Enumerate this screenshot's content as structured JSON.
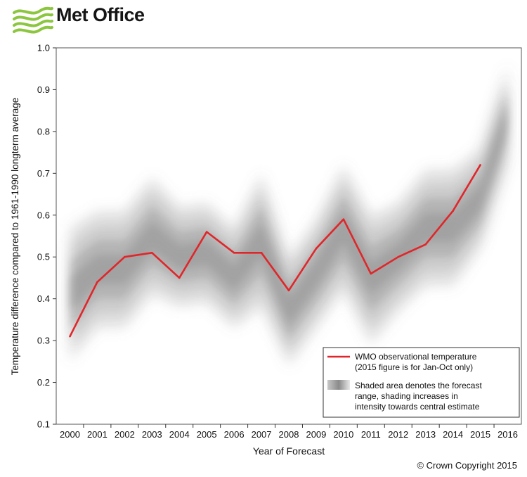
{
  "brand": {
    "name": "Met Office",
    "logo_color": "#8cc63f"
  },
  "copyright": "© Crown Copyright 2015",
  "chart_data": {
    "type": "line",
    "title": "",
    "xlabel": "Year of Forecast",
    "ylabel": "Temperature difference compared to 1961-1990 longterm average",
    "categories": [
      "2000",
      "2001",
      "2002",
      "2003",
      "2004",
      "2005",
      "2006",
      "2007",
      "2008",
      "2009",
      "2010",
      "2011",
      "2012",
      "2013",
      "2014",
      "2015",
      "2016"
    ],
    "yticks": [
      "0.1",
      "0.2",
      "0.3",
      "0.4",
      "0.5",
      "0.6",
      "0.7",
      "0.8",
      "0.9",
      "1.0"
    ],
    "ylim": [
      0.1,
      1.0
    ],
    "grid": false,
    "series": [
      {
        "name": "WMO observational temperature",
        "color": "#e0262a",
        "x": [
          "2000",
          "2001",
          "2002",
          "2003",
          "2004",
          "2005",
          "2006",
          "2007",
          "2008",
          "2009",
          "2010",
          "2011",
          "2012",
          "2013",
          "2014",
          "2015"
        ],
        "values": [
          0.31,
          0.44,
          0.5,
          0.51,
          0.45,
          0.56,
          0.51,
          0.51,
          0.42,
          0.52,
          0.59,
          0.46,
          0.5,
          0.53,
          0.61,
          0.72
        ]
      }
    ],
    "forecast_range": {
      "x": [
        "2000",
        "2001",
        "2002",
        "2003",
        "2004",
        "2005",
        "2006",
        "2007",
        "2008",
        "2009",
        "2010",
        "2011",
        "2012",
        "2013",
        "2014",
        "2015",
        "2016"
      ],
      "upper": [
        0.57,
        0.61,
        0.61,
        0.69,
        0.62,
        0.63,
        0.57,
        0.7,
        0.5,
        0.59,
        0.72,
        0.6,
        0.63,
        0.71,
        0.71,
        0.76,
        0.96
      ],
      "central": [
        0.41,
        0.47,
        0.47,
        0.55,
        0.5,
        0.51,
        0.45,
        0.54,
        0.37,
        0.46,
        0.57,
        0.45,
        0.5,
        0.57,
        0.57,
        0.64,
        0.84
      ],
      "lower": [
        0.25,
        0.33,
        0.33,
        0.41,
        0.38,
        0.39,
        0.33,
        0.38,
        0.24,
        0.33,
        0.42,
        0.29,
        0.37,
        0.43,
        0.43,
        0.52,
        0.72
      ],
      "color": "#7a7a7a"
    },
    "legend": {
      "placement": "bottom-right",
      "entries": [
        {
          "line1": "WMO observational temperature",
          "line2": "(2015 figure is for Jan-Oct only)"
        },
        {
          "line1": "Shaded area denotes the forecast",
          "line2": "range, shading increases in",
          "line3": "intensity towards central estimate"
        }
      ]
    }
  }
}
